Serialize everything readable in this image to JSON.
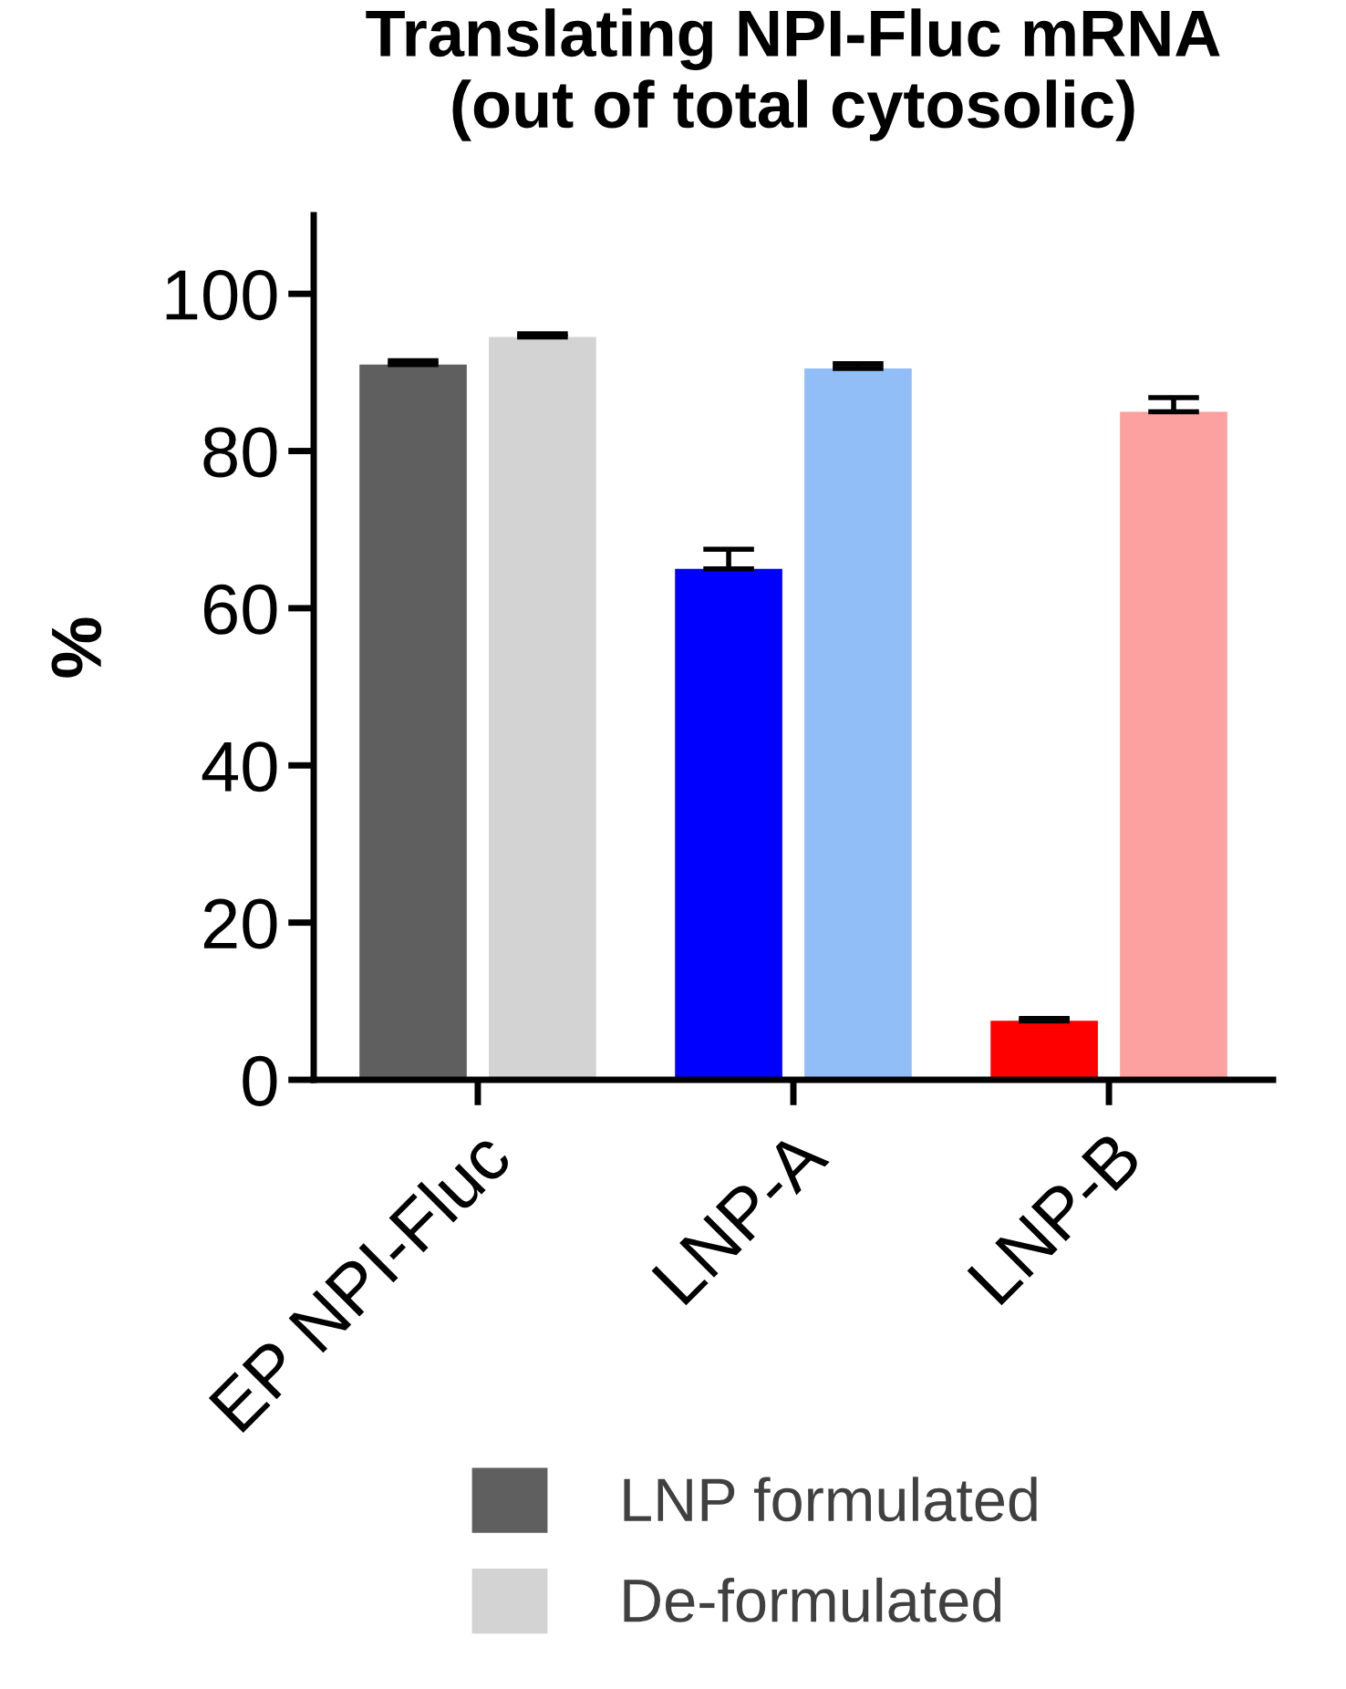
{
  "chart_data": {
    "type": "bar",
    "title": "Translating NPI-Fluc mRNA\n(out of total cytosolic)",
    "ylabel": "%",
    "categories": [
      "EP NPI-Fluc",
      "LNP-A",
      "LNP-B"
    ],
    "series": [
      {
        "name": "LNP formulated",
        "color": "#5f5f5f",
        "colors": [
          "#5f5f5f",
          "#0000ff",
          "#ff0000"
        ],
        "values": [
          91,
          65,
          7.5
        ],
        "errors": [
          [
            91,
            91.5
          ],
          [
            65,
            67.5
          ],
          [
            7.5,
            7.8
          ]
        ]
      },
      {
        "name": "De-formulated",
        "color": "#d3d3d3",
        "colors": [
          "#d3d3d3",
          "#91bef7",
          "#fca0a0"
        ],
        "values": [
          94.5,
          90.5,
          85
        ],
        "errors": [
          [
            94.5,
            94.9
          ],
          [
            90.5,
            91.1
          ],
          [
            85,
            86.8
          ]
        ]
      }
    ],
    "ylim": [
      0,
      110
    ],
    "yticks": [
      0,
      20,
      40,
      60,
      80,
      100
    ],
    "grid": false,
    "legend": "bottom"
  }
}
